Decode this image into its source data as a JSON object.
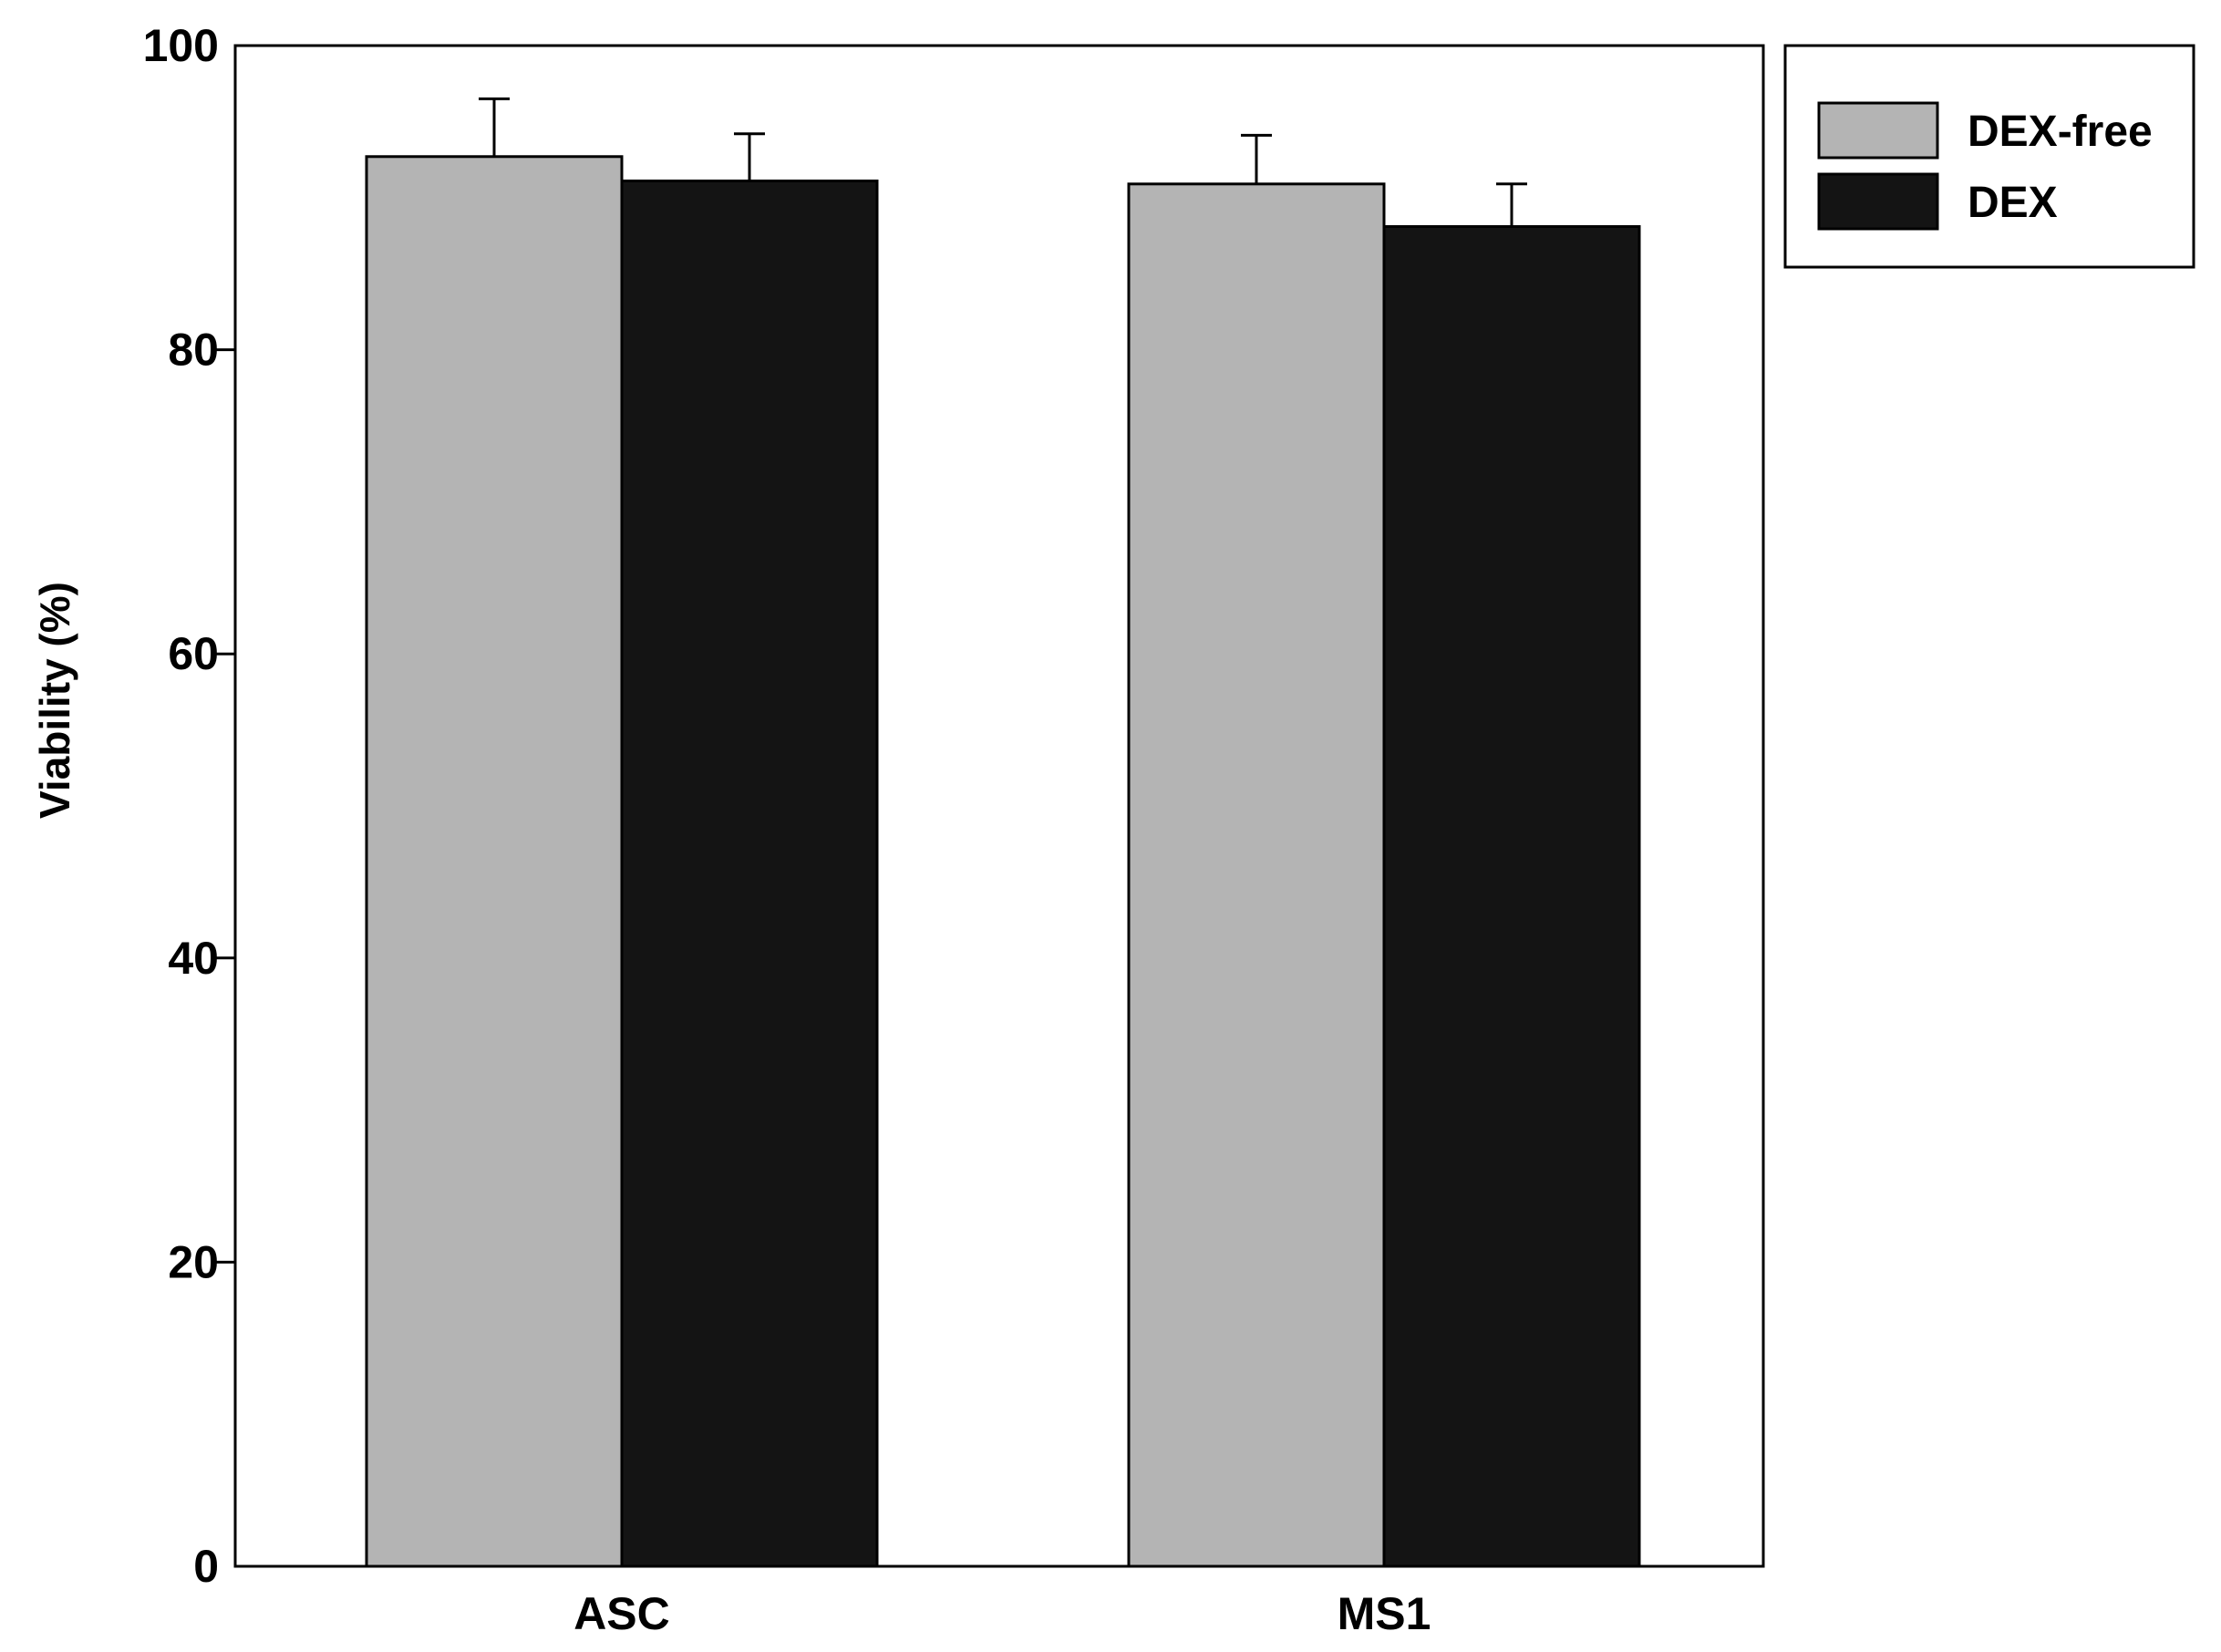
{
  "chart_data": {
    "type": "bar",
    "title": "",
    "xlabel": "",
    "ylabel": "Viability (%)",
    "ylim": [
      0,
      100
    ],
    "yticks": [
      0,
      20,
      40,
      60,
      80,
      100
    ],
    "categories": [
      "ASC",
      "MS1"
    ],
    "series": [
      {
        "name": "DEX-free",
        "color": "#b4b4b4",
        "values": [
          92.7,
          90.9
        ],
        "errors": [
          3.8,
          3.2
        ]
      },
      {
        "name": "DEX",
        "color": "#141414",
        "values": [
          91.1,
          88.1
        ],
        "errors": [
          3.1,
          2.8
        ]
      }
    ],
    "grid": false,
    "legend": "top-right, outside plot"
  }
}
